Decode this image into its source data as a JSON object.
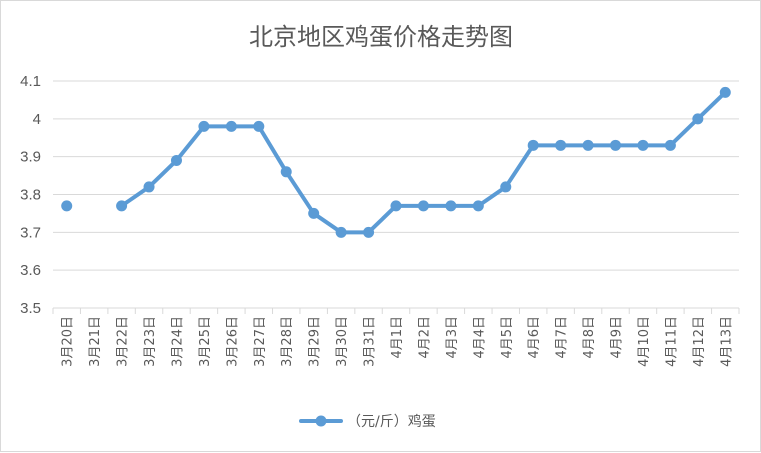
{
  "chart_data": {
    "type": "line",
    "title": "北京地区鸡蛋价格走势图",
    "xlabel": "",
    "ylabel": "",
    "ylim": [
      3.5,
      4.1
    ],
    "yticks": [
      "3.5",
      "3.6",
      "3.7",
      "3.8",
      "3.9",
      "4",
      "4.1"
    ],
    "grid": "horizontal",
    "legend_position": "bottom",
    "categories": [
      "3月20日",
      "3月21日",
      "3月22日",
      "3月23日",
      "3月24日",
      "3月25日",
      "3月26日",
      "3月27日",
      "3月28日",
      "3月29日",
      "3月30日",
      "3月31日",
      "4月1日",
      "4月2日",
      "4月3日",
      "4月4日",
      "4月5日",
      "4月6日",
      "4月7日",
      "4月8日",
      "4月9日",
      "4月10日",
      "4月11日",
      "4月12日",
      "4月13日"
    ],
    "series": [
      {
        "name": "（元/斤）鸡蛋",
        "color": "#5b9bd5",
        "values": [
          3.77,
          null,
          3.77,
          3.82,
          3.89,
          3.98,
          3.98,
          3.98,
          3.86,
          3.75,
          3.7,
          3.7,
          3.77,
          3.77,
          3.77,
          3.77,
          3.82,
          3.93,
          3.93,
          3.93,
          3.93,
          3.93,
          3.93,
          4.0,
          4.07
        ]
      }
    ]
  }
}
